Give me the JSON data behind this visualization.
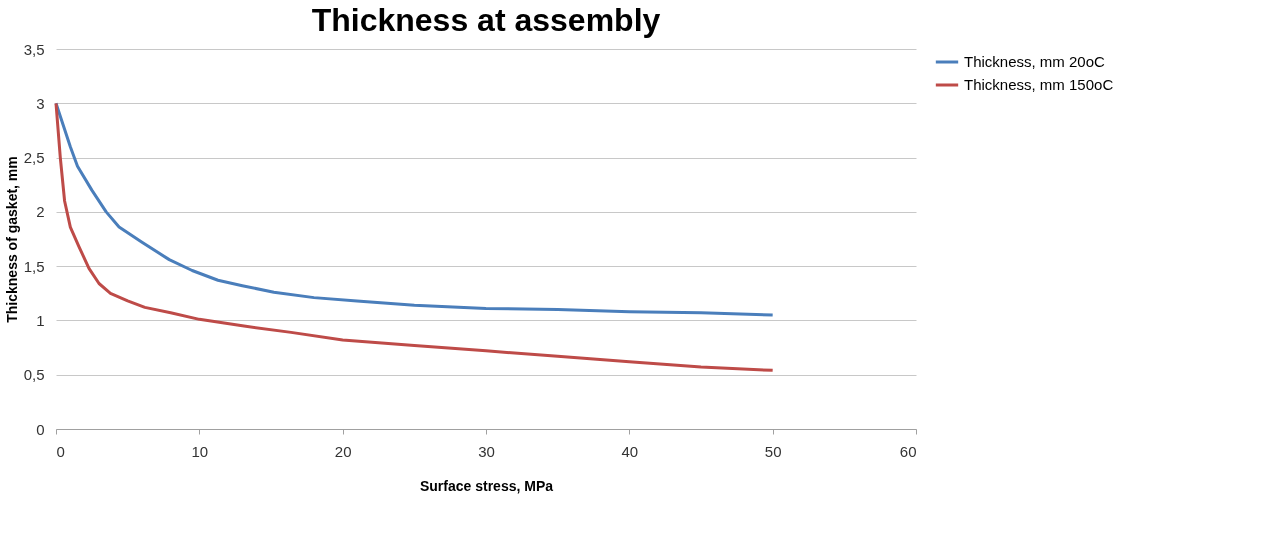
{
  "chart_data": {
    "type": "line",
    "title": "Thickness at assembly",
    "xlabel": "Surface stress, MPa",
    "ylabel": "Thickness of gasket, mm",
    "xlim": [
      0,
      60
    ],
    "xticks": [
      0,
      10,
      20,
      30,
      40,
      50,
      60
    ],
    "ylim": [
      0,
      3.5
    ],
    "yticks": [
      0,
      {
        "value": 0.5,
        "label": "0,5"
      },
      1,
      {
        "value": 1.5,
        "label": "1,5"
      },
      2,
      {
        "value": 2.5,
        "label": "2,5"
      },
      3,
      {
        "value": 3.5,
        "label": "3,5"
      }
    ],
    "grid": "y",
    "legend": "right",
    "marker": "none",
    "line_style": "solid",
    "series": [
      {
        "name": " Thickness, mm 20oC",
        "color": "#4a7ebb",
        "x": [
          0,
          0.5,
          1,
          1.5,
          2.5,
          3.5,
          4.4,
          6,
          7.9,
          9.5,
          11.3,
          13,
          15.2,
          18,
          21,
          25,
          30,
          35,
          40,
          45,
          50
        ],
        "values": [
          3,
          2.8,
          2.6,
          2.42,
          2.2,
          2.0,
          1.86,
          1.72,
          1.56,
          1.46,
          1.37,
          1.32,
          1.26,
          1.21,
          1.18,
          1.14,
          1.11,
          1.1,
          1.08,
          1.07,
          1.05
        ]
      },
      {
        "name": "Thickness, mm 150oC",
        "color": "#be4b48",
        "x": [
          0,
          0.3,
          0.6,
          1,
          1.6,
          2.3,
          3,
          3.8,
          5,
          6.2,
          8,
          10,
          13,
          16.4,
          20,
          25,
          30,
          35,
          40,
          45,
          50
        ],
        "values": [
          3,
          2.5,
          2.1,
          1.86,
          1.68,
          1.48,
          1.34,
          1.25,
          1.18,
          1.12,
          1.07,
          1.01,
          0.95,
          0.89,
          0.82,
          0.77,
          0.72,
          0.67,
          0.62,
          0.57,
          0.54
        ]
      }
    ]
  }
}
